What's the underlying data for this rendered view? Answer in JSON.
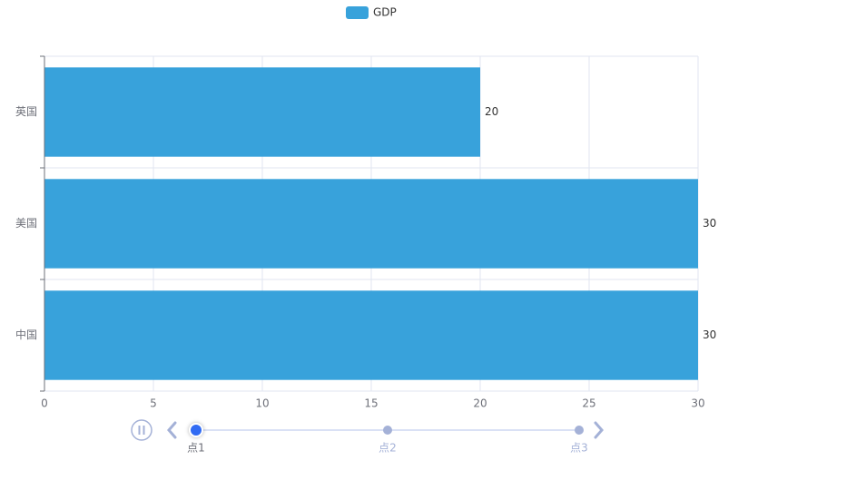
{
  "chart_data": {
    "type": "bar",
    "orientation": "horizontal",
    "categories": [
      "中国",
      "美国",
      "英国"
    ],
    "series": [
      {
        "name": "GDP",
        "color": "#38a2db",
        "values": [
          30,
          30,
          20
        ]
      }
    ],
    "xlim": [
      0,
      30
    ],
    "xticks": [
      0,
      5,
      10,
      15,
      20,
      25,
      30
    ],
    "grid": true,
    "legend": "top"
  },
  "timeline": {
    "points": [
      "点1",
      "点2",
      "点3"
    ],
    "current": 0
  }
}
